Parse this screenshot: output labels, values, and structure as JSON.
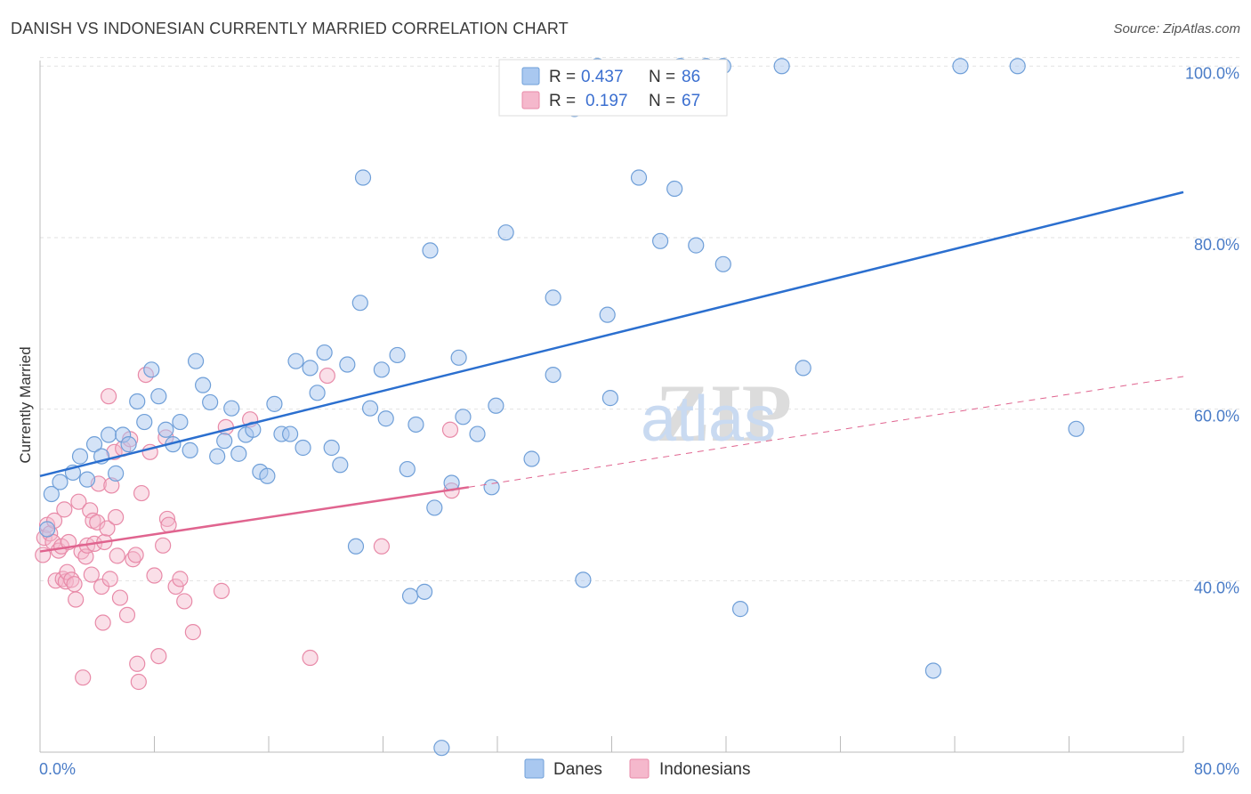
{
  "header": {
    "title": "DANISH VS INDONESIAN CURRENTLY MARRIED CORRELATION CHART",
    "source": "Source: ZipAtlas.com"
  },
  "watermark": {
    "zip": "ZIP",
    "atlas": "atlas"
  },
  "legend": {
    "rows": [
      {
        "r_label": "R =",
        "r_value": "0.437",
        "n_label": "N =",
        "n_value": "86",
        "color": "#a9c8f0"
      },
      {
        "r_label": "R =",
        "r_value": "0.197",
        "n_label": "N =",
        "n_value": "67",
        "color": "#f5b8cc"
      }
    ]
  },
  "bottom_legend": {
    "danes": "Danes",
    "indonesians": "Indonesians"
  },
  "colors": {
    "danes_fill": "#a9c8f0",
    "danes_stroke": "#6f9fd8",
    "danes_line": "#2b6fcf",
    "indo_fill": "#f5b8cc",
    "indo_stroke": "#e88aa8",
    "indo_line": "#e0648f"
  },
  "chart_data": {
    "type": "scatter",
    "title": "DANISH VS INDONESIAN CURRENTLY MARRIED CORRELATION CHART",
    "xlabel": "",
    "ylabel": "Currently Married",
    "xlim": [
      0,
      80
    ],
    "ylim": [
      20,
      102
    ],
    "x_tick_labels": [
      "0.0%",
      "80.0%"
    ],
    "y_ticks": [
      40,
      60,
      80,
      100
    ],
    "y_tick_labels": [
      "40.0%",
      "60.0%",
      "80.0%",
      "100.0%"
    ],
    "grid": true,
    "legend_position": "top-center",
    "series": [
      {
        "name": "Danes",
        "r": 0.437,
        "n": 86,
        "trend": {
          "x": [
            0,
            80
          ],
          "y": [
            52.2,
            85.3
          ]
        },
        "points": [
          [
            0.8,
            50.1
          ],
          [
            1.4,
            51.5
          ],
          [
            2.3,
            52.6
          ],
          [
            2.8,
            54.5
          ],
          [
            3.3,
            51.8
          ],
          [
            3.8,
            55.9
          ],
          [
            4.3,
            54.5
          ],
          [
            4.8,
            57.0
          ],
          [
            5.3,
            52.5
          ],
          [
            5.8,
            57.0
          ],
          [
            6.2,
            55.9
          ],
          [
            6.8,
            60.9
          ],
          [
            7.3,
            58.5
          ],
          [
            7.8,
            64.6
          ],
          [
            8.3,
            61.5
          ],
          [
            8.8,
            57.6
          ],
          [
            9.3,
            55.9
          ],
          [
            9.8,
            58.5
          ],
          [
            10.5,
            55.2
          ],
          [
            10.9,
            65.6
          ],
          [
            11.4,
            62.8
          ],
          [
            11.9,
            60.8
          ],
          [
            12.4,
            54.5
          ],
          [
            12.9,
            56.3
          ],
          [
            13.4,
            60.1
          ],
          [
            13.9,
            54.8
          ],
          [
            14.4,
            57.0
          ],
          [
            14.9,
            57.6
          ],
          [
            15.4,
            52.7
          ],
          [
            15.9,
            52.2
          ],
          [
            16.4,
            60.6
          ],
          [
            16.9,
            57.1
          ],
          [
            17.5,
            57.1
          ],
          [
            17.9,
            65.6
          ],
          [
            18.4,
            55.5
          ],
          [
            18.9,
            64.8
          ],
          [
            19.4,
            61.9
          ],
          [
            19.9,
            66.6
          ],
          [
            20.4,
            55.5
          ],
          [
            21.0,
            53.5
          ],
          [
            21.5,
            65.2
          ],
          [
            22.1,
            44.0
          ],
          [
            22.4,
            72.4
          ],
          [
            22.6,
            87.0
          ],
          [
            23.1,
            60.1
          ],
          [
            23.9,
            64.6
          ],
          [
            24.2,
            58.9
          ],
          [
            25.0,
            66.3
          ],
          [
            25.7,
            53.0
          ],
          [
            25.9,
            38.2
          ],
          [
            26.3,
            58.2
          ],
          [
            26.9,
            38.7
          ],
          [
            27.3,
            78.5
          ],
          [
            27.6,
            48.5
          ],
          [
            28.1,
            20.5
          ],
          [
            28.8,
            51.4
          ],
          [
            29.3,
            66.0
          ],
          [
            29.6,
            59.1
          ],
          [
            30.6,
            57.1
          ],
          [
            31.6,
            50.9
          ],
          [
            31.9,
            60.4
          ],
          [
            32.6,
            80.6
          ],
          [
            34.4,
            54.2
          ],
          [
            35.9,
            64.0
          ],
          [
            35.9,
            73.0
          ],
          [
            37.4,
            95.0
          ],
          [
            38.0,
            40.1
          ],
          [
            39.0,
            100.0
          ],
          [
            39.7,
            71.0
          ],
          [
            39.9,
            61.3
          ],
          [
            41.9,
            87.0
          ],
          [
            43.4,
            79.6
          ],
          [
            44.4,
            85.7
          ],
          [
            44.8,
            100.0
          ],
          [
            45.9,
            79.1
          ],
          [
            47.8,
            76.9
          ],
          [
            47.8,
            100.0
          ],
          [
            49.0,
            36.7
          ],
          [
            51.9,
            100.0
          ],
          [
            53.4,
            64.8
          ],
          [
            62.5,
            29.5
          ],
          [
            64.4,
            100.0
          ],
          [
            68.4,
            100.0
          ],
          [
            72.5,
            57.7
          ],
          [
            0.5,
            46.0
          ],
          [
            46.6,
            100.0
          ]
        ]
      },
      {
        "name": "Indonesians",
        "r": 0.197,
        "n": 67,
        "trend": {
          "x": [
            0,
            30
          ],
          "y": [
            43.4,
            50.9
          ]
        },
        "trend_extension": {
          "x": [
            30,
            80
          ],
          "y": [
            50.9,
            63.8
          ]
        },
        "points": [
          [
            0.2,
            43.0
          ],
          [
            0.3,
            45.0
          ],
          [
            0.5,
            46.5
          ],
          [
            0.7,
            45.5
          ],
          [
            0.9,
            44.5
          ],
          [
            1.0,
            47.0
          ],
          [
            1.1,
            40.0
          ],
          [
            1.3,
            43.5
          ],
          [
            1.5,
            44.0
          ],
          [
            1.6,
            40.2
          ],
          [
            1.7,
            48.3
          ],
          [
            1.8,
            39.9
          ],
          [
            1.9,
            41.0
          ],
          [
            2.0,
            44.5
          ],
          [
            2.2,
            40.1
          ],
          [
            2.4,
            39.6
          ],
          [
            2.5,
            37.8
          ],
          [
            2.7,
            49.2
          ],
          [
            2.9,
            43.4
          ],
          [
            3.0,
            28.7
          ],
          [
            3.2,
            42.8
          ],
          [
            3.3,
            44.1
          ],
          [
            3.5,
            48.2
          ],
          [
            3.6,
            40.7
          ],
          [
            3.7,
            47.0
          ],
          [
            3.8,
            44.3
          ],
          [
            4.0,
            46.8
          ],
          [
            4.1,
            51.3
          ],
          [
            4.3,
            39.3
          ],
          [
            4.4,
            35.1
          ],
          [
            4.5,
            44.5
          ],
          [
            4.7,
            46.1
          ],
          [
            4.8,
            61.5
          ],
          [
            4.9,
            40.2
          ],
          [
            5.0,
            51.1
          ],
          [
            5.2,
            55.0
          ],
          [
            5.3,
            47.4
          ],
          [
            5.4,
            42.9
          ],
          [
            5.6,
            38.0
          ],
          [
            5.8,
            55.4
          ],
          [
            6.1,
            36.0
          ],
          [
            6.3,
            56.5
          ],
          [
            6.5,
            42.5
          ],
          [
            6.7,
            43.0
          ],
          [
            6.8,
            30.3
          ],
          [
            6.9,
            28.2
          ],
          [
            7.1,
            50.2
          ],
          [
            7.4,
            64.0
          ],
          [
            7.7,
            55.0
          ],
          [
            8.0,
            40.6
          ],
          [
            8.3,
            31.2
          ],
          [
            8.6,
            44.1
          ],
          [
            8.8,
            56.7
          ],
          [
            8.9,
            47.2
          ],
          [
            9.0,
            46.5
          ],
          [
            9.5,
            39.3
          ],
          [
            9.8,
            40.2
          ],
          [
            10.1,
            37.6
          ],
          [
            10.7,
            34.0
          ],
          [
            12.7,
            38.8
          ],
          [
            13.0,
            57.9
          ],
          [
            14.7,
            58.8
          ],
          [
            18.9,
            31.0
          ],
          [
            20.1,
            63.9
          ],
          [
            23.9,
            44.0
          ],
          [
            28.7,
            57.6
          ],
          [
            28.8,
            50.5
          ]
        ]
      }
    ]
  }
}
